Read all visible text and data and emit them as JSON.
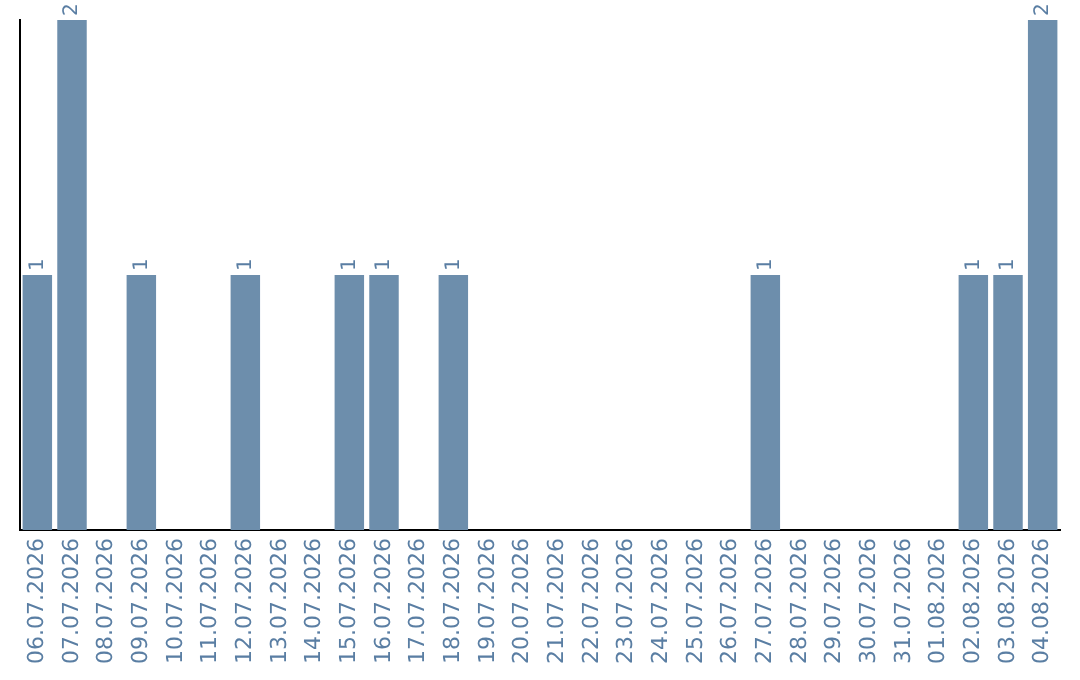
{
  "chart_data": {
    "type": "bar",
    "categories": [
      "06.07.2026",
      "07.07.2026",
      "08.07.2026",
      "09.07.2026",
      "10.07.2026",
      "11.07.2026",
      "12.07.2026",
      "13.07.2026",
      "14.07.2026",
      "15.07.2026",
      "16.07.2026",
      "17.07.2026",
      "18.07.2026",
      "19.07.2026",
      "20.07.2026",
      "21.07.2026",
      "22.07.2026",
      "23.07.2026",
      "24.07.2026",
      "25.07.2026",
      "26.07.2026",
      "27.07.2026",
      "28.07.2026",
      "29.07.2026",
      "30.07.2026",
      "31.07.2026",
      "01.08.2026",
      "02.08.2026",
      "03.08.2026",
      "04.08.2026"
    ],
    "values": [
      1,
      2,
      0,
      1,
      0,
      0,
      1,
      0,
      0,
      1,
      1,
      0,
      1,
      0,
      0,
      0,
      0,
      0,
      0,
      0,
      0,
      1,
      0,
      0,
      0,
      0,
      0,
      1,
      1,
      2
    ],
    "value_labels": [
      "1",
      "2",
      null,
      "1",
      null,
      null,
      "1",
      null,
      null,
      "1",
      "1",
      null,
      "1",
      null,
      null,
      null,
      null,
      null,
      null,
      null,
      null,
      "1",
      null,
      null,
      null,
      null,
      null,
      "1",
      "1",
      "2"
    ],
    "color": "#6d8eac",
    "ylim": [
      0,
      2
    ],
    "tick_labels": "x",
    "grid": false,
    "legend": false
  }
}
